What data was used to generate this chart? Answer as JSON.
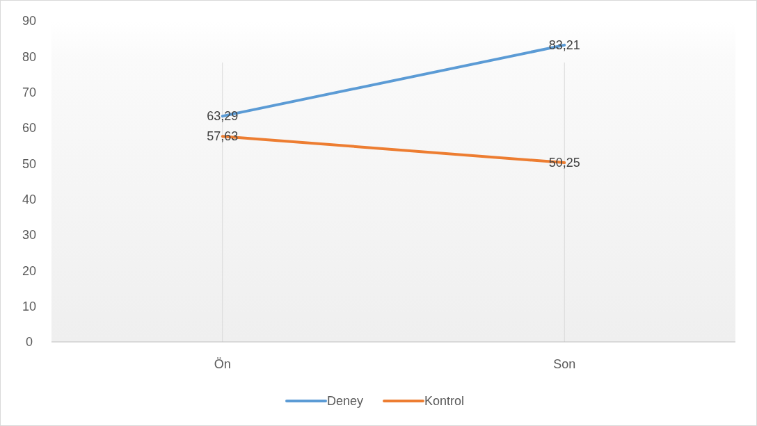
{
  "chart_data": {
    "type": "line",
    "categories": [
      "Ön",
      "Son"
    ],
    "series": [
      {
        "name": "Deney",
        "color": "#5b9bd5",
        "values": [
          63.29,
          83.21
        ],
        "value_labels": [
          "63,29",
          "83,21"
        ]
      },
      {
        "name": "Kontrol",
        "color": "#ed7d31",
        "values": [
          57.63,
          50.25
        ],
        "value_labels": [
          "57,63",
          "50,25"
        ]
      }
    ],
    "ylim": [
      0,
      90
    ],
    "yticks": [
      0,
      10,
      20,
      30,
      40,
      50,
      60,
      70,
      80,
      90
    ],
    "grid": "x",
    "legend": "bottom",
    "marker": "none",
    "line_style": "solid"
  }
}
